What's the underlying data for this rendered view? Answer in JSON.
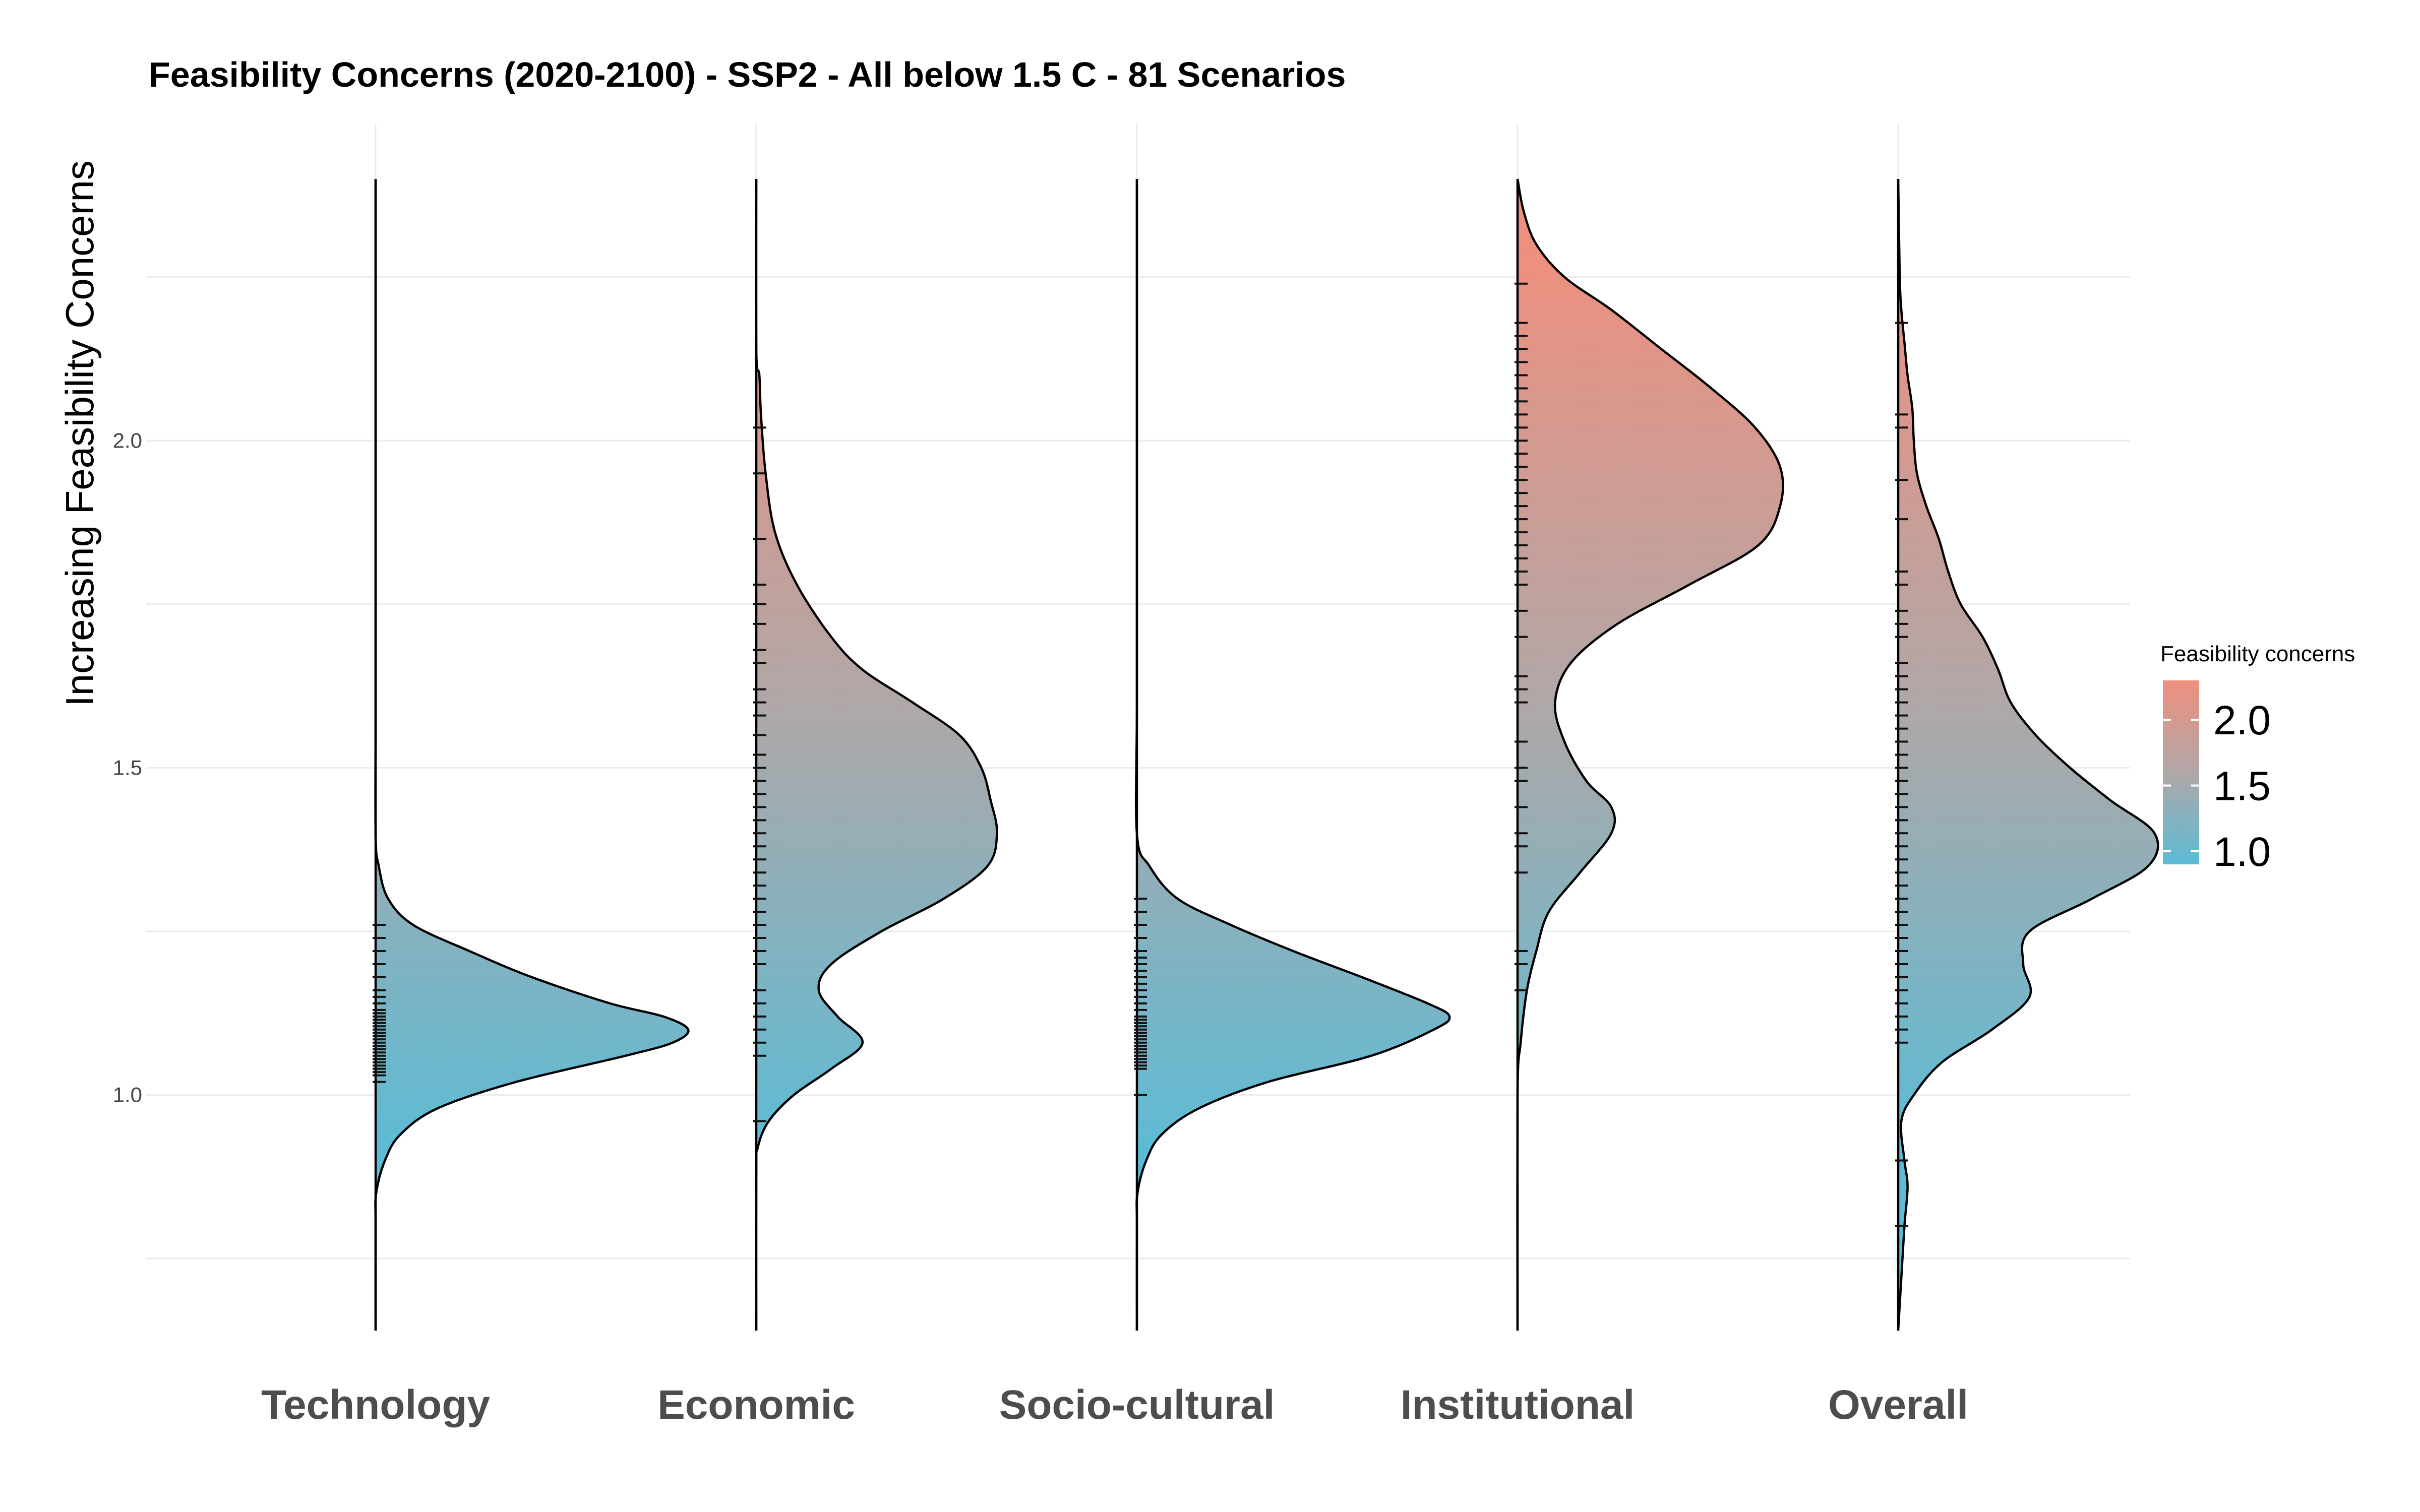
{
  "chart_data": {
    "type": "density_ridge",
    "title": "Feasibility Concerns (2020-2100) - SSP2 - All below 1.5 C - 81 Scenarios",
    "xlabel": "",
    "ylabel": "Increasing Feasibility Concerns",
    "categories": [
      "Technology",
      "Economic",
      "Socio-cultural",
      "Institutional",
      "Overall"
    ],
    "ylim": [
      0.64,
      2.4
    ],
    "yticks": [
      1.0,
      1.5,
      2.0
    ],
    "ytick_labels": [
      "1.0",
      "1.5",
      "2.0"
    ],
    "grid": true,
    "color_scale": {
      "title": "Feasibility concerns",
      "low_color": "#5bbcd6",
      "mid_color": "#b0a7a7",
      "high_color": "#ef8f7e",
      "range": [
        0.9,
        2.3
      ],
      "ticks": [
        2.0,
        1.5,
        1.0
      ],
      "tick_labels": [
        "2.0",
        "1.5",
        "1.0"
      ],
      "legend_position": "right"
    },
    "series": [
      {
        "category": "Technology",
        "density_y": [
          0.64,
          0.8,
          0.85,
          0.9,
          0.94,
          0.98,
          1.02,
          1.06,
          1.08,
          1.1,
          1.12,
          1.14,
          1.18,
          1.22,
          1.26,
          1.3,
          1.35,
          1.4,
          1.6,
          2.0,
          2.4
        ],
        "density": [
          0.0,
          0.0,
          0.002,
          0.03,
          0.08,
          0.2,
          0.45,
          0.8,
          0.95,
          1.0,
          0.92,
          0.75,
          0.5,
          0.3,
          0.12,
          0.04,
          0.01,
          0.0,
          0.0,
          0.0,
          0.0
        ],
        "rug": [
          1.02,
          1.03,
          1.035,
          1.04,
          1.045,
          1.05,
          1.055,
          1.06,
          1.065,
          1.07,
          1.075,
          1.08,
          1.085,
          1.09,
          1.095,
          1.1,
          1.105,
          1.11,
          1.115,
          1.12,
          1.125,
          1.13,
          1.14,
          1.15,
          1.16,
          1.18,
          1.2,
          1.22,
          1.24,
          1.26
        ]
      },
      {
        "category": "Economic",
        "density_y": [
          0.64,
          0.88,
          0.92,
          0.96,
          1.0,
          1.04,
          1.08,
          1.12,
          1.16,
          1.2,
          1.25,
          1.3,
          1.35,
          1.4,
          1.45,
          1.5,
          1.55,
          1.6,
          1.65,
          1.7,
          1.78,
          1.86,
          1.95,
          2.04,
          2.1,
          2.14,
          2.4
        ],
        "density": [
          0.0,
          0.0,
          0.005,
          0.04,
          0.12,
          0.24,
          0.34,
          0.26,
          0.2,
          0.24,
          0.4,
          0.6,
          0.74,
          0.77,
          0.75,
          0.72,
          0.65,
          0.5,
          0.34,
          0.24,
          0.13,
          0.06,
          0.03,
          0.015,
          0.01,
          0.0,
          0.0
        ],
        "rug": [
          0.96,
          1.06,
          1.08,
          1.1,
          1.12,
          1.14,
          1.16,
          1.2,
          1.22,
          1.24,
          1.26,
          1.28,
          1.3,
          1.32,
          1.34,
          1.36,
          1.38,
          1.4,
          1.42,
          1.44,
          1.46,
          1.48,
          1.5,
          1.52,
          1.55,
          1.58,
          1.6,
          1.62,
          1.66,
          1.68,
          1.72,
          1.75,
          1.78,
          1.85,
          1.95,
          2.02
        ]
      },
      {
        "category": "Socio-cultural",
        "density_y": [
          0.64,
          0.8,
          0.85,
          0.9,
          0.94,
          0.98,
          1.02,
          1.06,
          1.1,
          1.12,
          1.14,
          1.18,
          1.22,
          1.26,
          1.3,
          1.35,
          1.4,
          1.6,
          2.0,
          2.4
        ],
        "density": [
          0.0,
          0.0,
          0.002,
          0.03,
          0.08,
          0.2,
          0.42,
          0.75,
          0.95,
          1.0,
          0.93,
          0.72,
          0.5,
          0.3,
          0.13,
          0.04,
          0.0,
          0.0,
          0.0,
          0.0
        ],
        "rug": [
          1.0,
          1.04,
          1.045,
          1.05,
          1.055,
          1.06,
          1.065,
          1.07,
          1.075,
          1.08,
          1.085,
          1.09,
          1.095,
          1.1,
          1.105,
          1.11,
          1.115,
          1.12,
          1.13,
          1.14,
          1.15,
          1.16,
          1.17,
          1.18,
          1.19,
          1.2,
          1.21,
          1.22,
          1.24,
          1.26,
          1.28,
          1.3
        ]
      },
      {
        "category": "Institutional",
        "density_y": [
          0.64,
          1.0,
          1.08,
          1.16,
          1.22,
          1.28,
          1.34,
          1.4,
          1.44,
          1.48,
          1.54,
          1.6,
          1.66,
          1.72,
          1.78,
          1.84,
          1.9,
          1.96,
          2.02,
          2.08,
          2.14,
          2.2,
          2.25,
          2.3,
          2.35,
          2.4
        ],
        "density": [
          0.0,
          0.0,
          0.01,
          0.03,
          0.06,
          0.1,
          0.2,
          0.3,
          0.3,
          0.22,
          0.15,
          0.12,
          0.17,
          0.32,
          0.55,
          0.77,
          0.84,
          0.84,
          0.76,
          0.62,
          0.46,
          0.3,
          0.15,
          0.06,
          0.02,
          0.0
        ],
        "rug": [
          1.16,
          1.2,
          1.22,
          1.34,
          1.38,
          1.4,
          1.44,
          1.48,
          1.5,
          1.54,
          1.6,
          1.62,
          1.64,
          1.7,
          1.74,
          1.78,
          1.8,
          1.82,
          1.84,
          1.86,
          1.88,
          1.9,
          1.92,
          1.94,
          1.96,
          1.98,
          2.0,
          2.02,
          2.04,
          2.06,
          2.08,
          2.1,
          2.12,
          2.14,
          2.16,
          2.18,
          2.24
        ]
      },
      {
        "category": "Overall",
        "density_y": [
          0.64,
          0.72,
          0.8,
          0.86,
          0.9,
          0.96,
          1.0,
          1.05,
          1.1,
          1.15,
          1.2,
          1.25,
          1.3,
          1.35,
          1.4,
          1.45,
          1.5,
          1.55,
          1.6,
          1.65,
          1.7,
          1.75,
          1.8,
          1.85,
          1.9,
          1.95,
          2.0,
          2.05,
          2.1,
          2.15,
          2.2,
          2.25,
          2.4
        ],
        "density": [
          0.0,
          0.01,
          0.02,
          0.03,
          0.02,
          0.01,
          0.05,
          0.14,
          0.3,
          0.42,
          0.4,
          0.42,
          0.62,
          0.8,
          0.82,
          0.68,
          0.55,
          0.44,
          0.36,
          0.32,
          0.27,
          0.2,
          0.16,
          0.13,
          0.09,
          0.06,
          0.05,
          0.045,
          0.03,
          0.02,
          0.01,
          0.005,
          0.0
        ],
        "rug": [
          0.8,
          0.9,
          1.08,
          1.1,
          1.12,
          1.14,
          1.16,
          1.18,
          1.2,
          1.22,
          1.24,
          1.26,
          1.28,
          1.3,
          1.32,
          1.34,
          1.36,
          1.38,
          1.4,
          1.42,
          1.44,
          1.46,
          1.48,
          1.5,
          1.52,
          1.54,
          1.56,
          1.58,
          1.6,
          1.62,
          1.64,
          1.66,
          1.7,
          1.72,
          1.74,
          1.78,
          1.8,
          1.88,
          1.94,
          2.02,
          2.04,
          2.18
        ]
      }
    ]
  }
}
